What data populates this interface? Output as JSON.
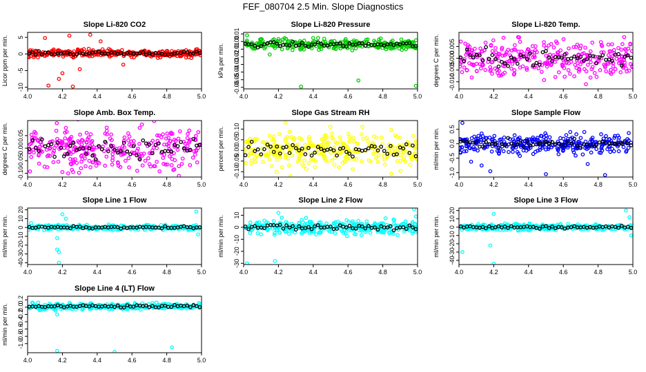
{
  "page": {
    "title": "FEF_080704  2.5 Min. Slope Diagnostics"
  },
  "x_axis": {
    "range": [
      4.0,
      5.0
    ],
    "ticks": [
      "4.0",
      "4.2",
      "4.4",
      "4.6",
      "4.8",
      "5.0"
    ]
  },
  "chart_data": [
    {
      "type": "scatter",
      "title": "Slope Li-820 CO2",
      "ylabel": "Licor ppm per min.",
      "xlim": [
        4.0,
        5.0
      ],
      "ylim": [
        -10.5,
        6.5
      ],
      "y_ticks": [
        "-10",
        "-5",
        "0",
        "5"
      ],
      "color": "#ff0000",
      "highlight_color": "#000000",
      "band": [
        -1.2,
        1.2
      ],
      "center": 0.2,
      "outliers": [
        [
          4.12,
          -9.5
        ],
        [
          4.18,
          -7.5
        ],
        [
          4.2,
          -5.8
        ],
        [
          4.26,
          -9.8
        ],
        [
          4.1,
          4.8
        ],
        [
          4.24,
          5.5
        ],
        [
          4.36,
          5.8
        ],
        [
          4.3,
          -4.6
        ],
        [
          4.42,
          3.8
        ],
        [
          4.55,
          -3.2
        ]
      ]
    },
    {
      "type": "scatter",
      "title": "Slope Li-820 Pressure",
      "ylabel": "kPa per min.",
      "xlim": [
        4.0,
        5.0
      ],
      "ylim": [
        -0.062,
        0.012
      ],
      "y_ticks": [
        "-0.06",
        "-0.05",
        "-0.04",
        "-0.03",
        "-0.02",
        "-0.01",
        "0.00",
        "0.01"
      ],
      "color": "#00cc00",
      "highlight_color": "#000000",
      "band": [
        -0.012,
        0.003
      ],
      "center": -0.004,
      "outliers": [
        [
          4.02,
          0.008
        ],
        [
          4.33,
          -0.059
        ],
        [
          4.66,
          -0.051
        ],
        [
          4.99,
          -0.058
        ],
        [
          4.15,
          -0.017
        ]
      ]
    },
    {
      "type": "scatter",
      "title": "Slope Li-820 Temp.",
      "ylabel": "degrees C per min.",
      "xlim": [
        4.0,
        5.0
      ],
      "ylim": [
        -0.013,
        0.011
      ],
      "y_ticks": [
        "-0.010",
        "-0.005",
        "0.000",
        "0.005"
      ],
      "color": "#ff00ff",
      "highlight_color": "#000000",
      "band": [
        -0.008,
        0.009
      ],
      "center": 0.0,
      "outliers": [
        [
          4.34,
          0.009
        ],
        [
          4.73,
          -0.011
        ],
        [
          4.95,
          0.009
        ]
      ]
    },
    {
      "type": "scatter",
      "title": "Slope Amb. Box Temp.",
      "ylabel": "degrees C per min.",
      "xlim": [
        4.0,
        5.0
      ],
      "ylim": [
        -0.115,
        0.11
      ],
      "y_ticks": [
        "-0.10",
        "-0.05",
        "0.00",
        "0.05"
      ],
      "color": "#ff00ff",
      "highlight_color": "#000000",
      "band": [
        -0.075,
        0.095
      ],
      "center": 0.0,
      "outliers": [
        [
          4.2,
          -0.095
        ],
        [
          4.63,
          -0.09
        ],
        [
          4.87,
          -0.11
        ]
      ]
    },
    {
      "type": "scatter",
      "title": "Slope Gas Stream RH",
      "ylabel": "percent per min.",
      "xlim": [
        4.0,
        5.0
      ],
      "ylim": [
        -0.125,
        0.14
      ],
      "y_ticks": [
        "-0.10",
        "-0.05",
        "0.00",
        "0.05",
        "0.10"
      ],
      "color": "#ffff00",
      "highlight_color": "#000000",
      "band": [
        -0.08,
        0.09
      ],
      "center": 0.0,
      "outliers": [
        [
          4.24,
          0.13
        ],
        [
          4.27,
          -0.12
        ],
        [
          4.85,
          -0.11
        ]
      ]
    },
    {
      "type": "scatter",
      "title": "Slope Sample Flow",
      "ylabel": "ml/min per min.",
      "xlim": [
        4.0,
        5.0
      ],
      "ylim": [
        -1.15,
        0.8
      ],
      "y_ticks": [
        "-1.0",
        "-0.5",
        "0.0",
        "0.5"
      ],
      "color": "#0000ff",
      "highlight_color": "#000000",
      "band": [
        -0.4,
        0.3
      ],
      "center": 0.0,
      "outliers": [
        [
          4.02,
          0.72
        ],
        [
          4.13,
          -0.75
        ],
        [
          4.18,
          -0.95
        ],
        [
          4.5,
          -1.05
        ],
        [
          4.84,
          -1.08
        ],
        [
          4.74,
          -0.7
        ],
        [
          4.07,
          -0.62
        ]
      ]
    },
    {
      "type": "scatter",
      "title": "Slope Line 1 Flow",
      "ylabel": "ml/min per min.",
      "xlim": [
        4.0,
        5.0
      ],
      "ylim": [
        -42,
        22
      ],
      "y_ticks": [
        "-40",
        "-30",
        "-20",
        "-10",
        "0",
        "10",
        "20"
      ],
      "color": "#00ffff",
      "highlight_color": "#000000",
      "band": [
        -3,
        3
      ],
      "center": 0.0,
      "outliers": [
        [
          4.18,
          -40
        ],
        [
          4.18,
          -28
        ],
        [
          4.17,
          -25
        ],
        [
          4.2,
          15
        ],
        [
          4.22,
          10
        ],
        [
          4.17,
          -12
        ],
        [
          4.97,
          18
        ],
        [
          4.98,
          -8
        ],
        [
          4.02,
          5
        ]
      ]
    },
    {
      "type": "scatter",
      "title": "Slope Line 2 Flow",
      "ylabel": "ml/min per min.",
      "xlim": [
        4.0,
        5.0
      ],
      "ylim": [
        -31,
        16
      ],
      "y_ticks": [
        "-30",
        "-20",
        "-10",
        "0",
        "10"
      ],
      "color": "#00ffff",
      "highlight_color": "#000000",
      "band": [
        -6,
        6
      ],
      "center": 0.0,
      "outliers": [
        [
          4.02,
          -30
        ],
        [
          4.18,
          -28
        ],
        [
          4.2,
          12
        ],
        [
          4.22,
          8
        ],
        [
          4.98,
          15
        ],
        [
          4.99,
          9
        ],
        [
          4.97,
          -5
        ]
      ]
    },
    {
      "type": "scatter",
      "title": "Slope Line 3 Flow",
      "ylabel": "ml/min per min.",
      "xlim": [
        4.0,
        5.0
      ],
      "ylim": [
        -45,
        23
      ],
      "y_ticks": [
        "-40",
        "-30",
        "-20",
        "-10",
        "0",
        "10",
        "20"
      ],
      "color": "#00ffff",
      "highlight_color": "#000000",
      "band": [
        -4,
        4
      ],
      "center": 0.0,
      "outliers": [
        [
          4.02,
          -30
        ],
        [
          4.2,
          -44
        ],
        [
          4.18,
          -22
        ],
        [
          4.2,
          16
        ],
        [
          4.96,
          20
        ],
        [
          4.98,
          12
        ],
        [
          4.99,
          -10
        ]
      ]
    },
    {
      "type": "scatter",
      "title": "Slope Line 4 (LT) Flow",
      "ylabel": "ml/min per min.",
      "xlim": [
        4.0,
        5.0
      ],
      "ylim": [
        -1.25,
        0.3
      ],
      "y_ticks": [
        "-1.0",
        "-0.8",
        "-0.6",
        "-0.4",
        "-0.2",
        "0.0",
        "0.2"
      ],
      "color": "#00ffff",
      "highlight_color": "#000000",
      "band": [
        -0.08,
        0.1
      ],
      "center": 0.02,
      "outliers": [
        [
          4.17,
          -1.2
        ],
        [
          4.5,
          -1.23
        ],
        [
          4.83,
          -1.1
        ],
        [
          4.17,
          -0.2
        ]
      ]
    }
  ]
}
